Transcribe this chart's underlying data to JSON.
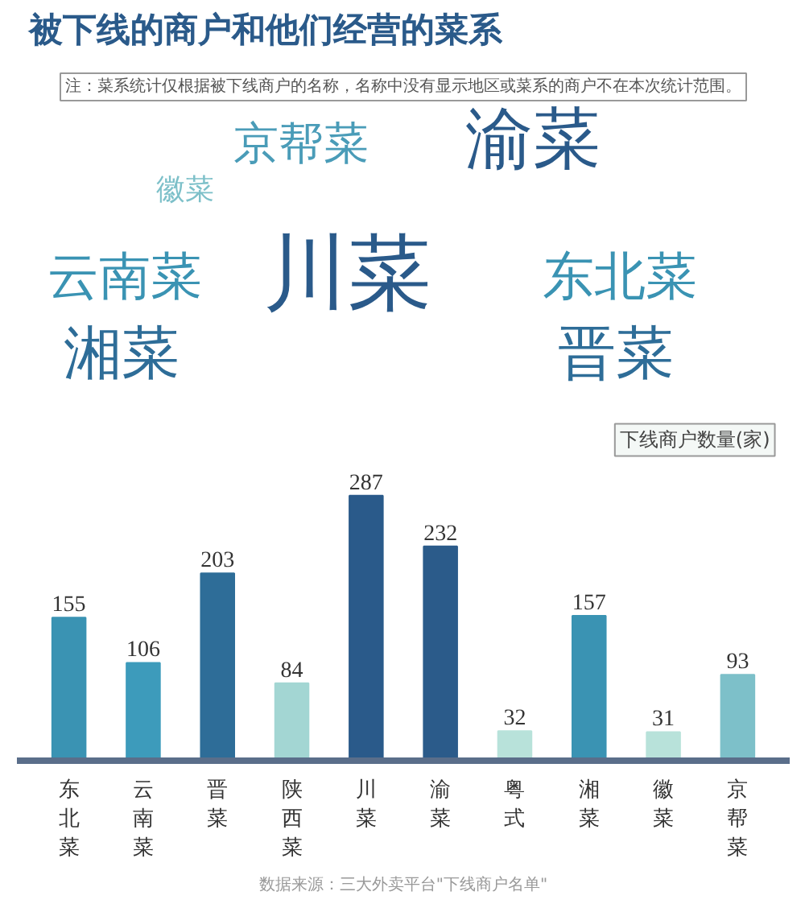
{
  "chart_data": [
    {
      "type": "other",
      "title": "被下线的商户和他们经营的菜系",
      "annotations": [
        "注：菜系统计仅根据被下线商户的名称，名称中没有显示地区或菜系的商户不在本次统计范围。",
        "京帮菜",
        "渝菜",
        "徽菜",
        "云南菜",
        "川菜",
        "东北菜",
        "湘菜",
        "晋菜"
      ],
      "colors": [
        "#4a9cb8",
        "#2a5a8a",
        "#7dc0c9",
        "#3a93b3",
        "#2a5a8a",
        "#3a93b3",
        "#2e6d98",
        "#2e6d98"
      ]
    },
    {
      "type": "bar",
      "ylabel": "下线商户数量(家)",
      "categories": [
        "东北菜",
        "云南菜",
        "晋菜",
        "陕西菜",
        "川菜",
        "渝菜",
        "粤式",
        "湘菜",
        "徽菜",
        "京帮菜"
      ],
      "values": [
        155,
        106,
        203,
        84,
        287,
        232,
        32,
        157,
        31,
        93
      ],
      "colors": [
        "#3a93b3",
        "#3d9bbb",
        "#2e6d98",
        "#a3d6d3",
        "#2a5a8a",
        "#2b5b8a",
        "#b8e2da",
        "#3a93b3",
        "#b8e2da",
        "#7dc0c9"
      ],
      "data_labels": true,
      "grid": false,
      "annotations": [
        "数据来源：三大外卖平台\"下线商户名单\""
      ]
    }
  ]
}
